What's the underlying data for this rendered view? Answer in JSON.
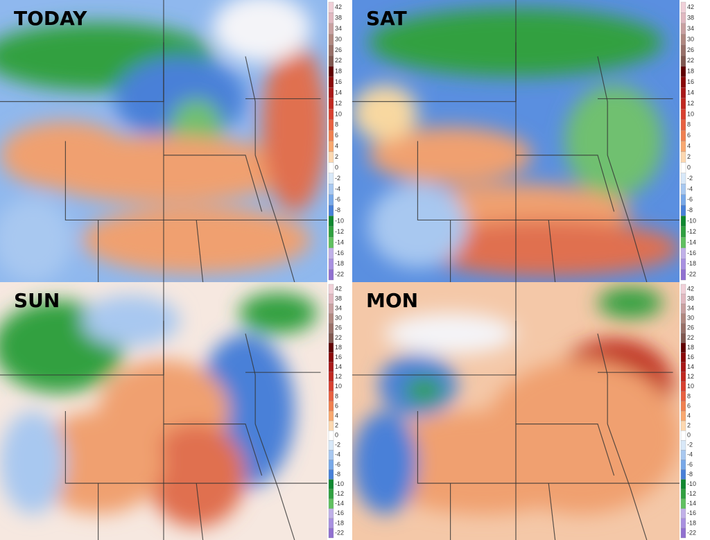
{
  "panels": [
    {
      "label": "TODAY"
    },
    {
      "label": "SAT"
    },
    {
      "label": "SUN"
    },
    {
      "label": "MON"
    }
  ],
  "colorbar_labels": [
    42,
    38,
    34,
    30,
    26,
    22,
    18,
    16,
    14,
    12,
    10,
    8,
    6,
    4,
    2,
    0,
    -2,
    -4,
    -6,
    -8,
    -10,
    -12,
    -14,
    -16,
    -18,
    -22
  ]
}
